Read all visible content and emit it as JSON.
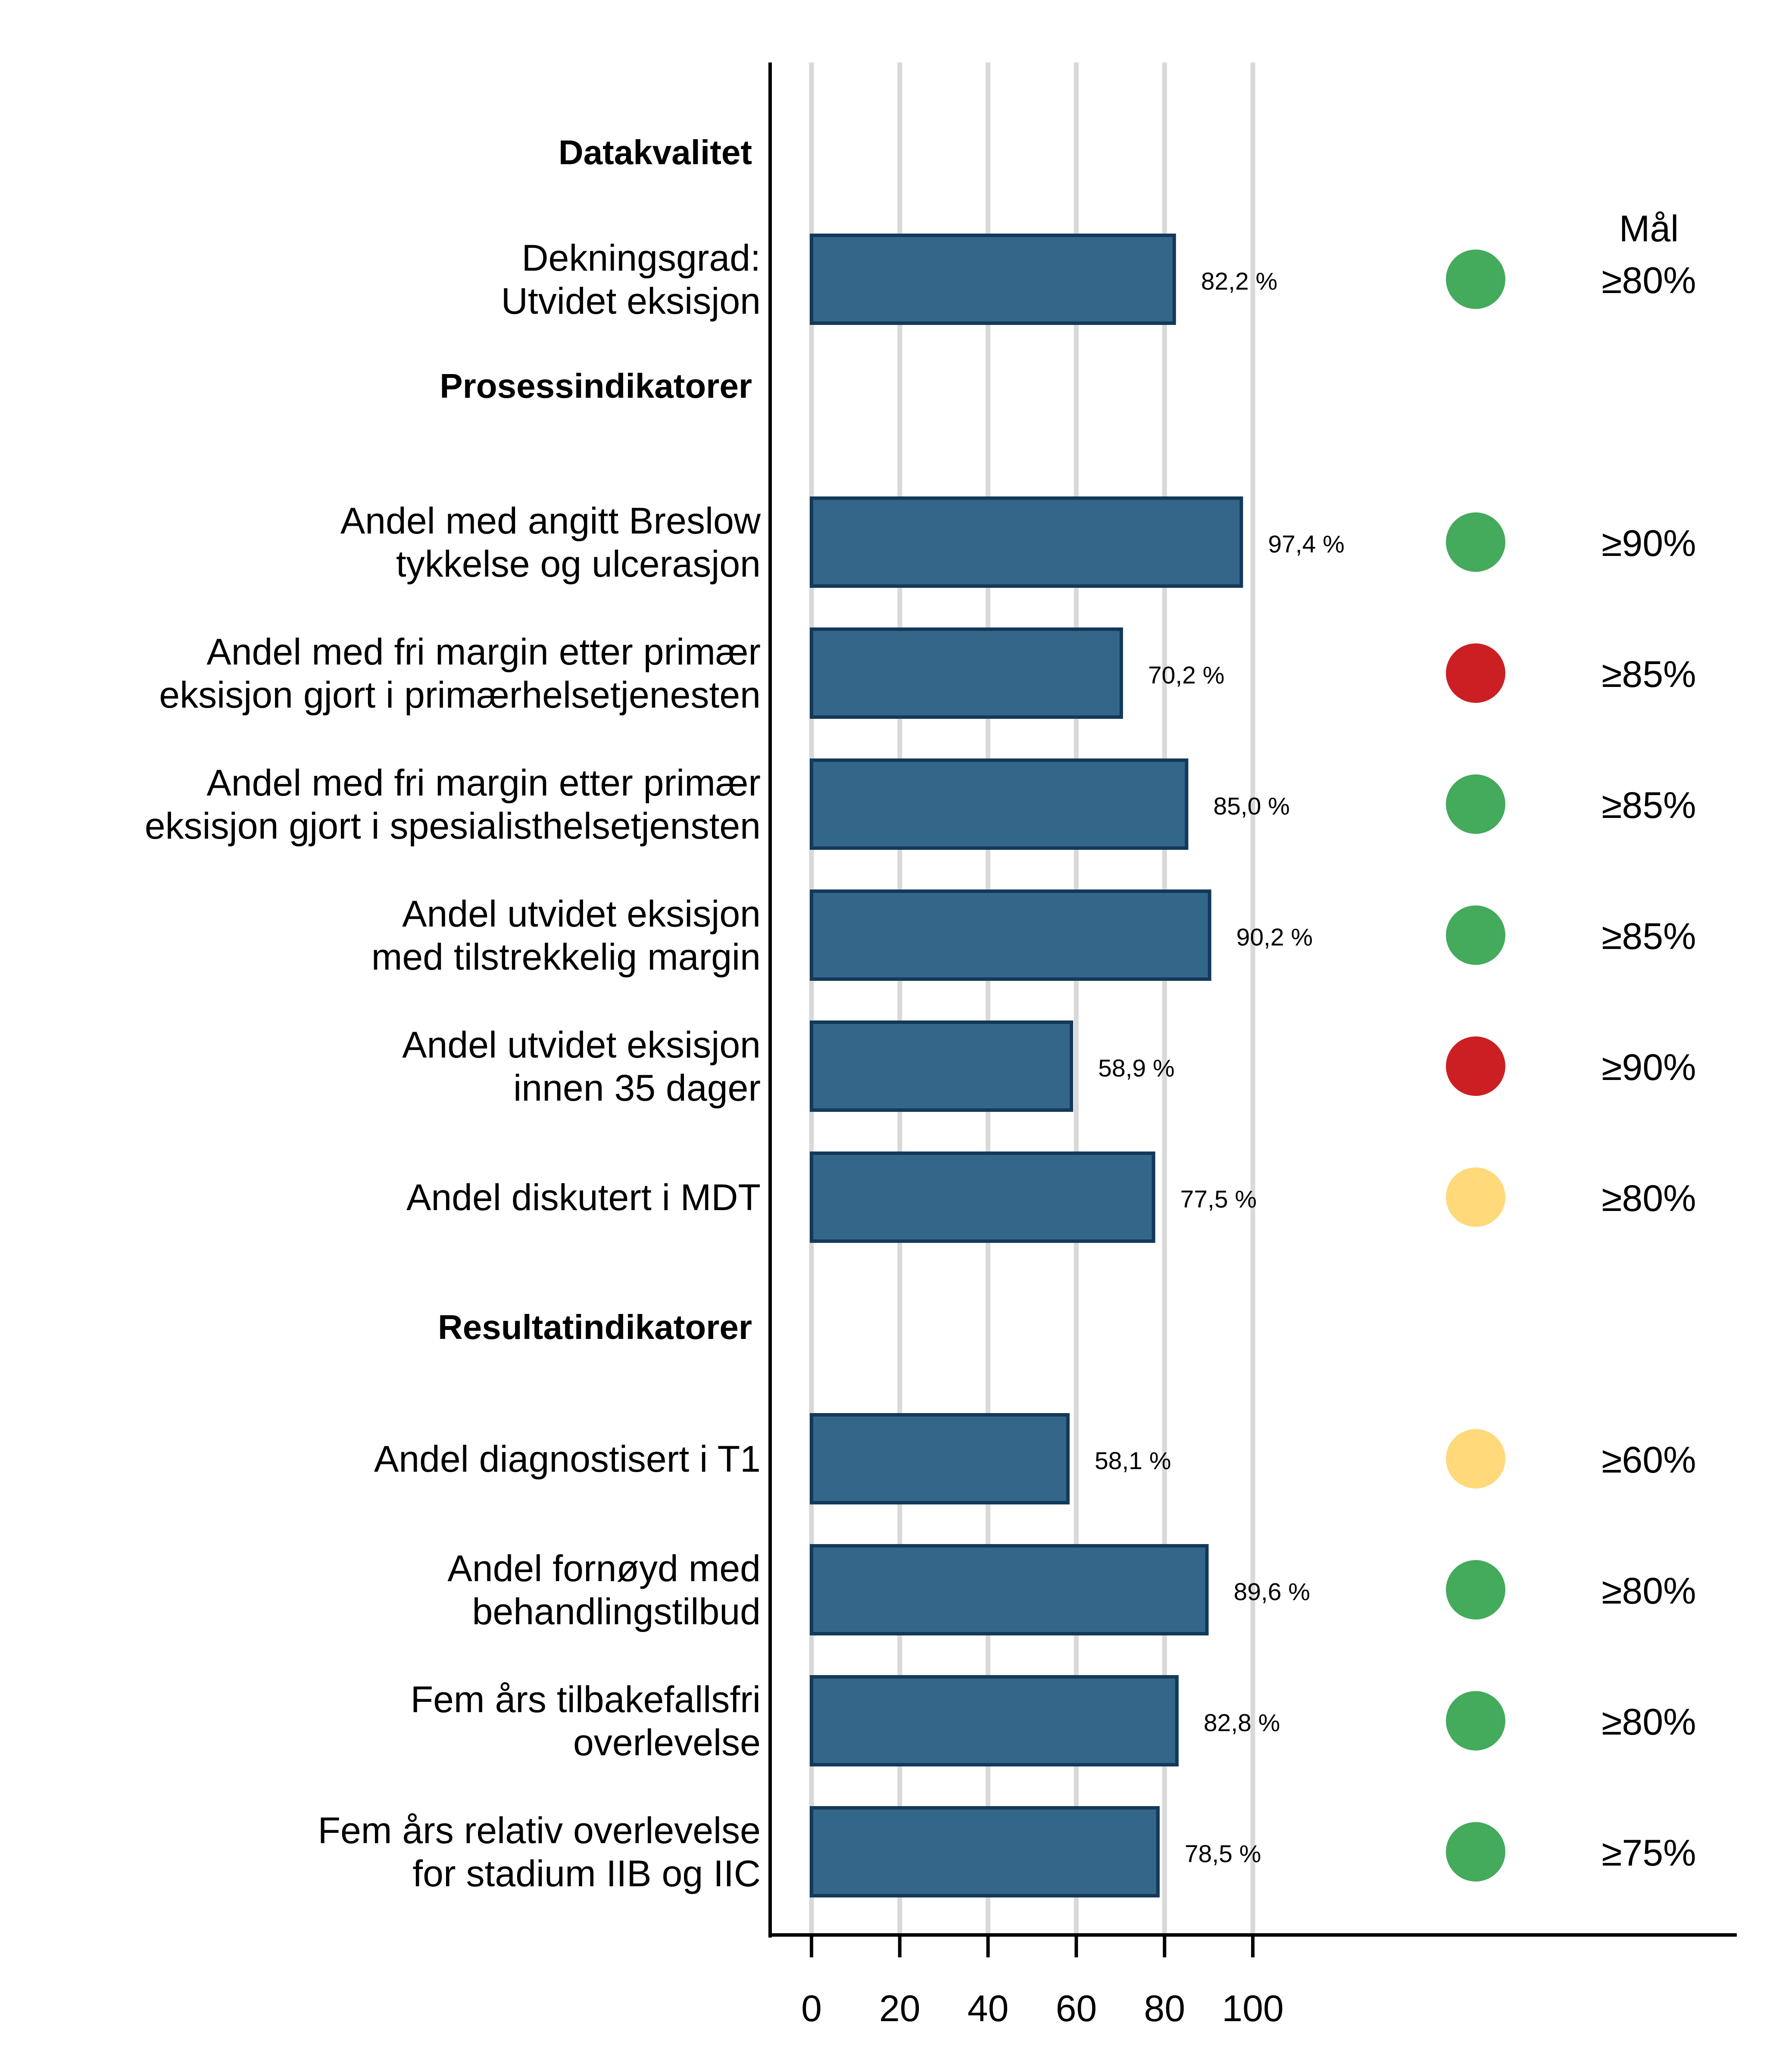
{
  "chart_data": {
    "type": "bar",
    "orientation": "horizontal",
    "xlim": [
      0,
      100
    ],
    "xticks": [
      0,
      20,
      40,
      60,
      80,
      100
    ],
    "grid": true,
    "target_header": "Mål",
    "bar_color": "#34668A",
    "status_colors": {
      "green": "#44AA5C",
      "red": "#CC1F24",
      "yellow": "#FFD97A"
    },
    "rows": [
      {
        "kind": "section",
        "label": "Datakvalitet"
      },
      {
        "kind": "bar",
        "label": [
          "Dekningsgrad:",
          "Utvidet eksisjon"
        ],
        "value": 82.2,
        "value_label": "82,2 %",
        "status": "green",
        "target": "≥80%"
      },
      {
        "kind": "section",
        "label": "Prosessindikatorer"
      },
      {
        "kind": "bar",
        "label": [
          "Andel med angitt Breslow",
          "tykkelse og ulcerasjon"
        ],
        "value": 97.4,
        "value_label": "97,4 %",
        "status": "green",
        "target": "≥90%"
      },
      {
        "kind": "bar",
        "label": [
          "Andel med fri margin etter primær",
          "eksisjon gjort i primærhelsetjenesten"
        ],
        "value": 70.2,
        "value_label": "70,2 %",
        "status": "red",
        "target": "≥85%"
      },
      {
        "kind": "bar",
        "label": [
          "Andel med fri margin etter primær",
          "eksisjon gjort i spesialisthelsetjensten"
        ],
        "value": 85.0,
        "value_label": "85,0 %",
        "status": "green",
        "target": "≥85%"
      },
      {
        "kind": "bar",
        "label": [
          "Andel utvidet eksisjon",
          "med tilstrekkelig margin"
        ],
        "value": 90.2,
        "value_label": "90,2 %",
        "status": "green",
        "target": "≥85%"
      },
      {
        "kind": "bar",
        "label": [
          "Andel utvidet eksisjon",
          "innen 35 dager"
        ],
        "value": 58.9,
        "value_label": "58,9 %",
        "status": "red",
        "target": "≥90%"
      },
      {
        "kind": "bar",
        "label": [
          "Andel diskutert i MDT"
        ],
        "value": 77.5,
        "value_label": "77,5 %",
        "status": "yellow",
        "target": "≥80%"
      },
      {
        "kind": "section",
        "label": "Resultatindikatorer"
      },
      {
        "kind": "bar",
        "label": [
          "Andel diagnostisert i T1"
        ],
        "value": 58.1,
        "value_label": "58,1 %",
        "status": "yellow",
        "target": "≥60%"
      },
      {
        "kind": "bar",
        "label": [
          "Andel fornøyd med",
          "behandlingstilbud"
        ],
        "value": 89.6,
        "value_label": "89,6 %",
        "status": "green",
        "target": "≥80%"
      },
      {
        "kind": "bar",
        "label": [
          "Fem års tilbakefallsfri",
          "overlevelse"
        ],
        "value": 82.8,
        "value_label": "82,8 %",
        "status": "green",
        "target": "≥80%"
      },
      {
        "kind": "bar",
        "label": [
          "Fem års relativ overlevelse",
          "for stadium IIB og IIC"
        ],
        "value": 78.5,
        "value_label": "78,5 %",
        "status": "green",
        "target": "≥75%"
      }
    ]
  }
}
